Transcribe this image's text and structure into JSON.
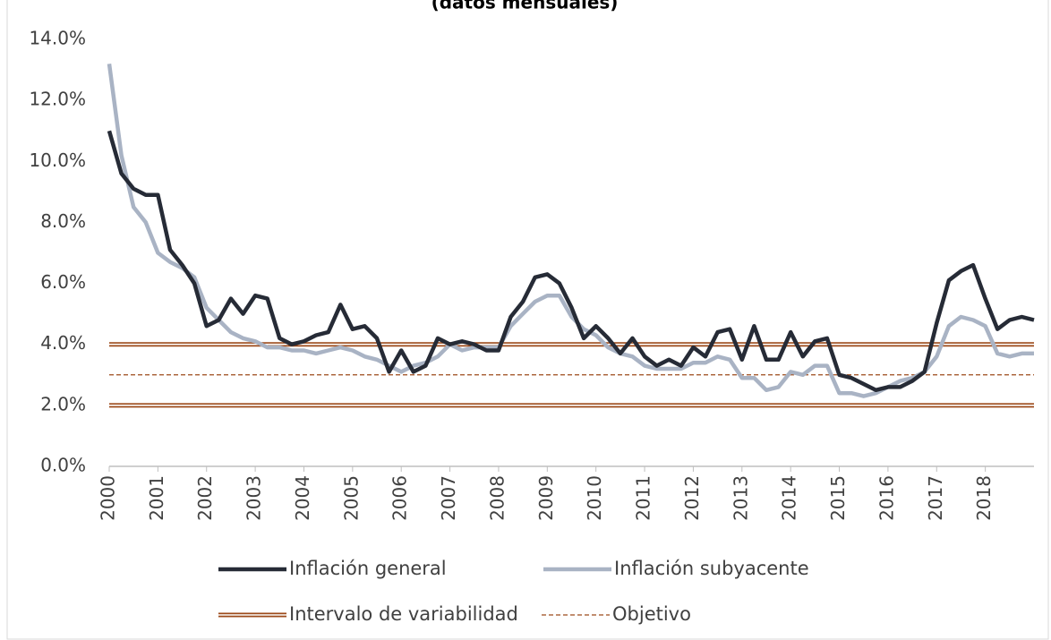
{
  "chart_data": {
    "type": "line",
    "subtitle": "(datos mensuales)",
    "x": [
      2000,
      2000.25,
      2000.5,
      2000.75,
      2001,
      2001.25,
      2001.5,
      2001.75,
      2002,
      2002.25,
      2002.5,
      2002.75,
      2003,
      2003.25,
      2003.5,
      2003.75,
      2004,
      2004.25,
      2004.5,
      2004.75,
      2005,
      2005.25,
      2005.5,
      2005.75,
      2006,
      2006.25,
      2006.5,
      2006.75,
      2007,
      2007.25,
      2007.5,
      2007.75,
      2008,
      2008.25,
      2008.5,
      2008.75,
      2009,
      2009.25,
      2009.5,
      2009.75,
      2010,
      2010.25,
      2010.5,
      2010.75,
      2011,
      2011.25,
      2011.5,
      2011.75,
      2012,
      2012.25,
      2012.5,
      2012.75,
      2013,
      2013.25,
      2013.5,
      2013.75,
      2014,
      2014.25,
      2014.5,
      2014.75,
      2015,
      2015.25,
      2015.5,
      2015.75,
      2016,
      2016.25,
      2016.5,
      2016.75,
      2017,
      2017.25,
      2017.5,
      2017.75,
      2018,
      2018.25,
      2018.5,
      2018.75,
      2019
    ],
    "series": [
      {
        "name": "Inflación general",
        "color": "#262b36",
        "values": [
          11.0,
          9.6,
          9.1,
          8.9,
          8.9,
          7.1,
          6.6,
          6.0,
          4.6,
          4.8,
          5.5,
          5.0,
          5.6,
          5.5,
          4.2,
          4.0,
          4.1,
          4.3,
          4.4,
          5.3,
          4.5,
          4.6,
          4.2,
          3.1,
          3.8,
          3.1,
          3.3,
          4.2,
          4.0,
          4.1,
          4.0,
          3.8,
          3.8,
          4.9,
          5.4,
          6.2,
          6.3,
          6.0,
          5.2,
          4.2,
          4.6,
          4.2,
          3.7,
          4.2,
          3.6,
          3.3,
          3.5,
          3.3,
          3.9,
          3.6,
          4.4,
          4.5,
          3.5,
          4.6,
          3.5,
          3.5,
          4.4,
          3.6,
          4.1,
          4.2,
          3.0,
          2.9,
          2.7,
          2.5,
          2.6,
          2.6,
          2.8,
          3.1,
          4.7,
          6.1,
          6.4,
          6.6,
          5.5,
          4.5,
          4.8,
          4.9,
          4.8
        ]
      },
      {
        "name": "Inflación subyacente",
        "color": "#a9b3c4",
        "values": [
          13.2,
          10.2,
          8.5,
          8.0,
          7.0,
          6.7,
          6.5,
          6.2,
          5.2,
          4.8,
          4.4,
          4.2,
          4.1,
          3.9,
          3.9,
          3.8,
          3.8,
          3.7,
          3.8,
          3.9,
          3.8,
          3.6,
          3.5,
          3.3,
          3.1,
          3.3,
          3.4,
          3.6,
          4.0,
          3.8,
          3.9,
          3.9,
          3.9,
          4.6,
          5.0,
          5.4,
          5.6,
          5.6,
          4.9,
          4.5,
          4.3,
          3.9,
          3.7,
          3.6,
          3.3,
          3.2,
          3.2,
          3.2,
          3.4,
          3.4,
          3.6,
          3.5,
          2.9,
          2.9,
          2.5,
          2.6,
          3.1,
          3.0,
          3.3,
          3.3,
          2.4,
          2.4,
          2.3,
          2.4,
          2.6,
          2.8,
          2.9,
          3.1,
          3.6,
          4.6,
          4.9,
          4.8,
          4.6,
          3.7,
          3.6,
          3.7,
          3.7
        ]
      }
    ],
    "band": {
      "name": "Intervalo de variabilidad",
      "lower": 2,
      "upper": 4,
      "color": "#9c4a1a"
    },
    "target": {
      "name": "Objetivo",
      "value": 3,
      "color": "#9c4a1a"
    },
    "xlim": [
      2000,
      2019
    ],
    "xticks": [
      2000,
      2001,
      2002,
      2003,
      2004,
      2005,
      2006,
      2007,
      2008,
      2009,
      2010,
      2011,
      2012,
      2013,
      2014,
      2015,
      2016,
      2017,
      2018
    ],
    "ylim": [
      0,
      14
    ],
    "yticks": [
      {
        "value": 0,
        "label": "0.0%"
      },
      {
        "value": 2,
        "label": "2.0%"
      },
      {
        "value": 4,
        "label": "4.0%"
      },
      {
        "value": 6,
        "label": "6.0%"
      },
      {
        "value": 8,
        "label": "8.0%"
      },
      {
        "value": 10,
        "label": "10.0%"
      },
      {
        "value": 12,
        "label": "12.0%"
      },
      {
        "value": 14,
        "label": "14.0%"
      }
    ],
    "grid": false
  }
}
